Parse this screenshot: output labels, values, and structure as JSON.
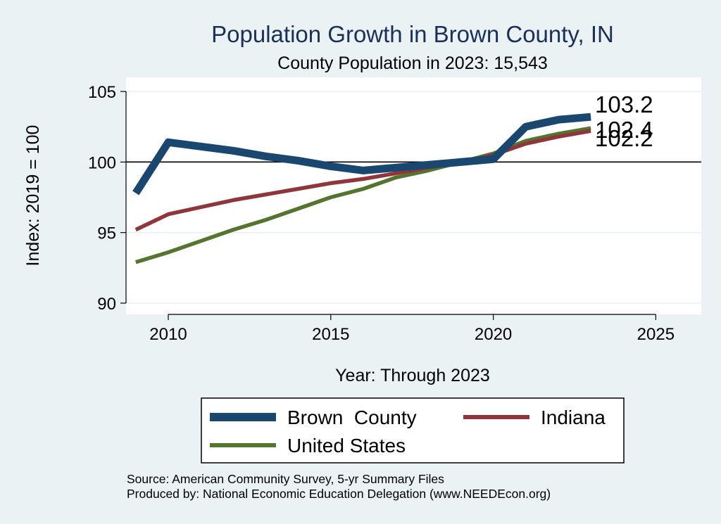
{
  "chart_data": {
    "type": "line",
    "title": "Population Growth in Brown County, IN",
    "subtitle": "County Population in 2023: 15,543",
    "xlabel": "Year: Through 2023",
    "ylabel": "Index: 2019 = 100",
    "xlim": [
      2008.7,
      2026.4
    ],
    "ylim": [
      89.2,
      106.0
    ],
    "xticks": [
      2010,
      2015,
      2020,
      2025
    ],
    "yticks": [
      90,
      95,
      100,
      105
    ],
    "reference_line": 100,
    "grid": true,
    "legend_position": "bottom",
    "series": [
      {
        "name": "Brown  County",
        "color": "#1a476f",
        "x": [
          2009,
          2010,
          2011,
          2012,
          2013,
          2014,
          2015,
          2016,
          2017,
          2018,
          2019,
          2020,
          2021,
          2022,
          2023
        ],
        "values": [
          97.8,
          101.4,
          101.1,
          100.8,
          100.4,
          100.1,
          99.7,
          99.4,
          99.6,
          99.8,
          100.0,
          100.2,
          102.5,
          103.0,
          103.2
        ],
        "end_label": "103.2"
      },
      {
        "name": "Indiana",
        "color": "#90353b",
        "x": [
          2009,
          2010,
          2011,
          2012,
          2013,
          2014,
          2015,
          2016,
          2017,
          2018,
          2019,
          2020,
          2021,
          2022,
          2023
        ],
        "values": [
          95.2,
          96.3,
          96.8,
          97.3,
          97.7,
          98.1,
          98.5,
          98.8,
          99.2,
          99.6,
          100.0,
          100.5,
          101.3,
          101.8,
          102.2
        ],
        "end_label": "102.2"
      },
      {
        "name": "United States",
        "color": "#55752f",
        "x": [
          2009,
          2010,
          2011,
          2012,
          2013,
          2014,
          2015,
          2016,
          2017,
          2018,
          2019,
          2020,
          2021,
          2022,
          2023
        ],
        "values": [
          92.9,
          93.6,
          94.4,
          95.2,
          95.9,
          96.7,
          97.5,
          98.1,
          98.9,
          99.4,
          100.0,
          100.6,
          101.5,
          102.0,
          102.4
        ],
        "end_label": "102.4"
      }
    ],
    "source_note": "Source: American Community Survey, 5-yr Summary Files",
    "producer_note": "Produced by: National Economic Education Delegation (www.NEEDEcon.org)"
  }
}
